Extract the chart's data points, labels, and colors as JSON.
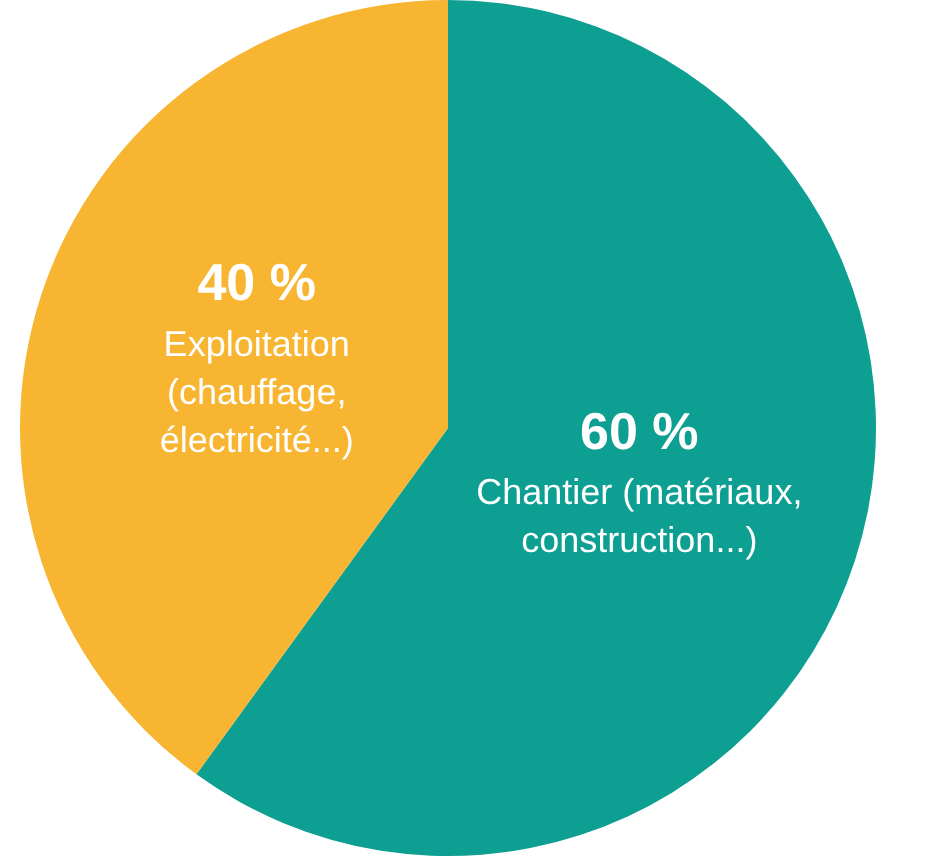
{
  "chart_data": {
    "type": "pie",
    "categories": [
      "Chantier (matériaux, construction...)",
      "Exploitation (chauffage, électricité...)"
    ],
    "values": [
      60,
      40
    ],
    "colors": [
      "#0e9f93",
      "#f7b531"
    ],
    "value_labels": [
      "60 %",
      "40 %"
    ],
    "legend": false
  }
}
